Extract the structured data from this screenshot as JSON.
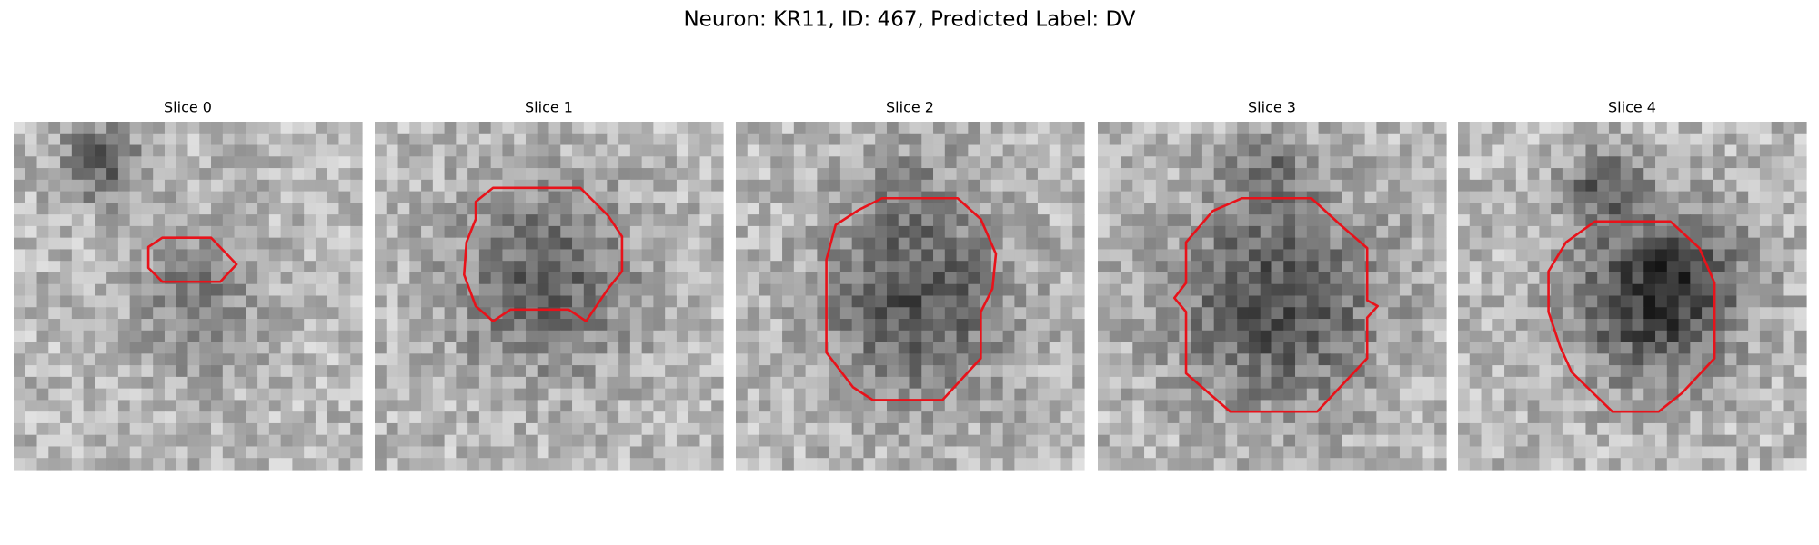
{
  "title": "Neuron: KR11, ID: 467, Predicted Label: DV",
  "panels": [
    {
      "title": "Slice 0"
    },
    {
      "title": "Slice 1"
    },
    {
      "title": "Slice 2"
    },
    {
      "title": "Slice 3"
    },
    {
      "title": "Slice 4"
    }
  ]
}
